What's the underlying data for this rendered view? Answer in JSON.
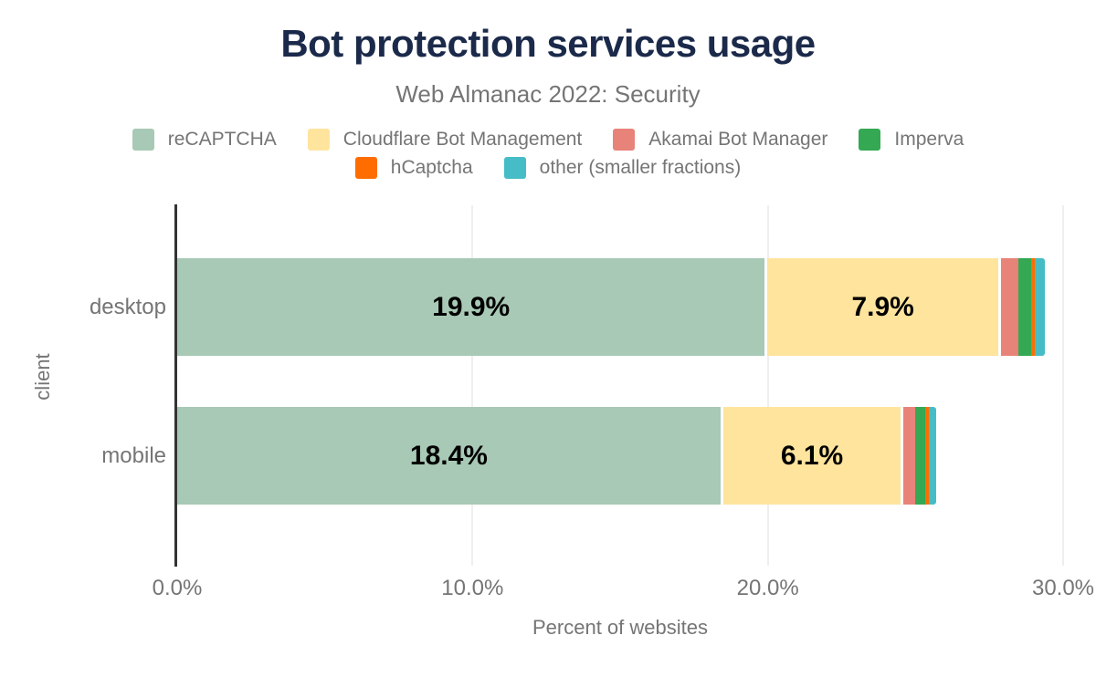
{
  "header": {
    "title": "Bot protection services usage",
    "subtitle": "Web Almanac 2022: Security"
  },
  "colors": {
    "title_text": "#1b2a4a",
    "muted_text": "#757575",
    "axis_line": "#333333",
    "gridline": "#efefef",
    "bar_value_text": "#000000"
  },
  "chart_data": {
    "type": "bar",
    "orientation": "horizontal_stacked",
    "categories": [
      "desktop",
      "mobile"
    ],
    "series": [
      {
        "name": "reCAPTCHA",
        "color": "#a8c9b5",
        "values": [
          19.9,
          18.4
        ],
        "show_label": true
      },
      {
        "name": "Cloudflare Bot Management",
        "color": "#ffe49e",
        "values": [
          7.9,
          6.1
        ],
        "show_label": true
      },
      {
        "name": "Akamai Bot Manager",
        "color": "#e8837a",
        "values": [
          0.68,
          0.49
        ],
        "show_label": false
      },
      {
        "name": "Imperva",
        "color": "#34a853",
        "values": [
          0.43,
          0.33
        ],
        "show_label": false
      },
      {
        "name": "hCaptcha",
        "color": "#ff6d00",
        "values": [
          0.14,
          0.14
        ],
        "show_label": false
      },
      {
        "name": "other (smaller fractions)",
        "color": "#46bdc6",
        "values": [
          0.33,
          0.24
        ],
        "show_label": false
      }
    ],
    "bar_labels": {
      "desktop": [
        "19.9%",
        "7.9%"
      ],
      "mobile": [
        "18.4%",
        "6.1%"
      ]
    },
    "xlabel": "Percent of websites",
    "ylabel": "client",
    "xlim": [
      0,
      30
    ],
    "x_tick_values": [
      0,
      10,
      20,
      30
    ],
    "x_tick_labels": [
      "0.0%",
      "10.0%",
      "20.0%",
      "30.0%"
    ],
    "grid": "vertical",
    "legend_position": "top"
  }
}
